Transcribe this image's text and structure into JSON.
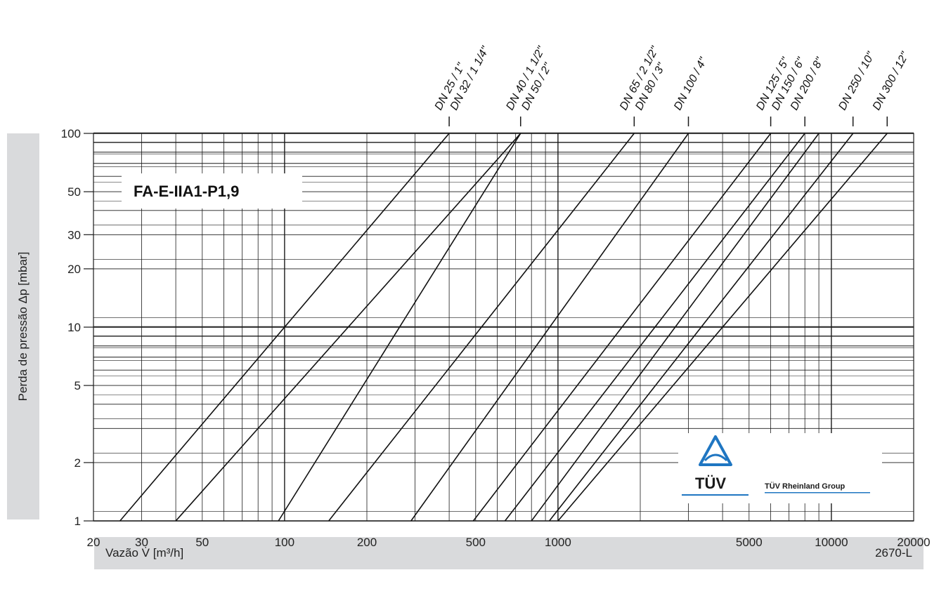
{
  "chart_data": {
    "type": "line",
    "title": "FA-E-IIA1-P1,9",
    "xlabel": "Vazão V̇ [m³/h]",
    "ylabel": "Perda de pressão Δp [mbar]",
    "code": "2670-L",
    "xscale": "log",
    "yscale": "log",
    "xlim": [
      20,
      20000
    ],
    "ylim": [
      1,
      100
    ],
    "grid": true,
    "xticks": [
      "20",
      "30",
      "50",
      "100",
      "200",
      "500",
      "1000",
      "5000",
      "10000",
      "20000"
    ],
    "yticks": [
      "1",
      "2",
      "5",
      "10",
      "20",
      "30",
      "50",
      "100"
    ],
    "series": [
      {
        "name": "DN 25 / 1\"",
        "x": [
          25,
          400
        ],
        "y": [
          1,
          100
        ]
      },
      {
        "name": "DN 32 / 1 1/4\"",
        "x": [
          40,
          730
        ],
        "y": [
          1,
          100
        ]
      },
      {
        "name": "DN 40 / 1 1/2\"",
        "x": [
          95,
          730
        ],
        "y": [
          1,
          100
        ]
      },
      {
        "name": "DN 50 / 2\"",
        "x": [
          145,
          1900
        ],
        "y": [
          1,
          100
        ]
      },
      {
        "name": "DN 65 / 2 1/2\"",
        "x": [
          290,
          3000
        ],
        "y": [
          1,
          100
        ]
      },
      {
        "name": "DN 80 / 3\"",
        "x": [
          490,
          6000
        ],
        "y": [
          1,
          100
        ]
      },
      {
        "name": "DN 100 / 4\"",
        "x": [
          640,
          8000
        ],
        "y": [
          1,
          100
        ]
      },
      {
        "name": "DN 125 / 5\"",
        "x": [
          800,
          9000
        ],
        "y": [
          1,
          100
        ]
      },
      {
        "name": "DN 150 / 6\"",
        "x": [
          930,
          12000
        ],
        "y": [
          1,
          100
        ]
      },
      {
        "name": "DN 200 / 8\"",
        "x": [
          1000,
          16000
        ],
        "y": [
          1,
          100
        ]
      }
    ],
    "top_labels": [
      {
        "text": "DN 25 / 1\"",
        "x": 400
      },
      {
        "text": "DN 32 / 1 1/4\"",
        "x": 400
      },
      {
        "text": "DN 40 / 1 1/2\"",
        "x": 730
      },
      {
        "text": "DN 50 / 2\"",
        "x": 730
      },
      {
        "text": "DN 65 / 2 1/2\"",
        "x": 1900
      },
      {
        "text": "DN 80 / 3\"",
        "x": 1900
      },
      {
        "text": "DN 100 / 4\"",
        "x": 3000
      },
      {
        "text": "DN 125 / 5\"",
        "x": 6000
      },
      {
        "text": "DN 150 / 6\"",
        "x": 6000
      },
      {
        "text": "DN 200 / 8\"",
        "x": 8000
      },
      {
        "text": "DN 250 / 10\"",
        "x": 12000
      },
      {
        "text": "DN 300 / 12\"",
        "x": 16000
      }
    ]
  },
  "logo": {
    "word": "TÜV",
    "group": "TÜV Rheinland Group",
    "color": "#1f76c2"
  }
}
